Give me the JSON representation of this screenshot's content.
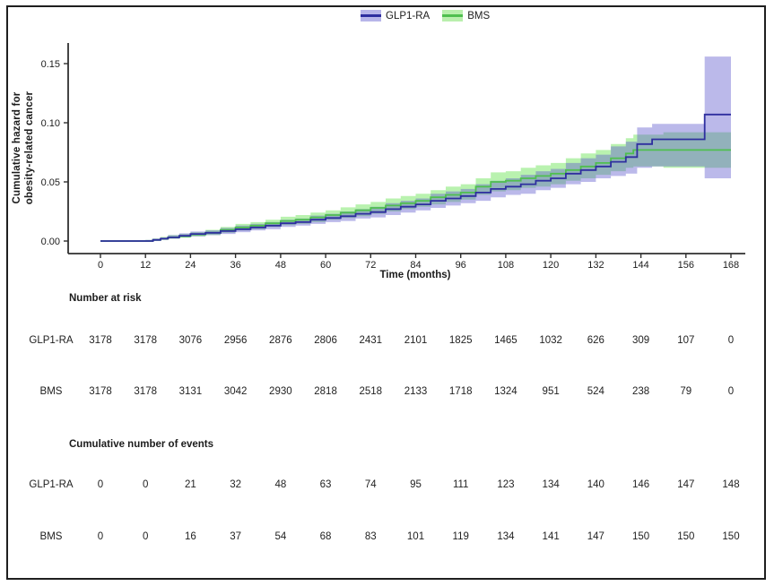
{
  "figure": {
    "y_axis_label_line1": "Cumulative hazard for",
    "y_axis_label_line2": "obesity-related cancer",
    "x_axis_label": "Time (months)"
  },
  "legend": {
    "items": [
      {
        "label": "GLP1-RA",
        "line_color": "#2e2e9f",
        "key_fill": "#b7b5e9"
      },
      {
        "label": "BMS",
        "line_color": "#4fbf4f",
        "key_fill": "#b9efad"
      }
    ]
  },
  "chart_data": {
    "type": "line",
    "subtype": "step-cumulative-hazard-with-confidence-bands",
    "title": "",
    "xlabel": "Time (months)",
    "ylabel": "Cumulative hazard for obesity-related cancer",
    "xlim": [
      0,
      168
    ],
    "ylim": [
      0,
      0.15
    ],
    "x_ticks": [
      0,
      12,
      24,
      36,
      48,
      60,
      72,
      84,
      96,
      108,
      120,
      132,
      144,
      156,
      168
    ],
    "x_tick_labels": [
      "0",
      "12",
      "24",
      "36",
      "48",
      "60",
      "72",
      "84",
      "96",
      "108",
      "120",
      "132",
      "144",
      "156",
      "168"
    ],
    "y_ticks": [
      0,
      0.05,
      0.1,
      0.15
    ],
    "y_tick_labels": [
      "0.00",
      "0.05",
      "0.10",
      "0.15"
    ],
    "grid": false,
    "legend_position": "top-center",
    "series": [
      {
        "name": "GLP1-RA",
        "line_color": "#2e2e9f",
        "band_color": "rgba(92,88,205,0.42)",
        "points": [
          [
            0,
            0,
            0,
            0
          ],
          [
            12,
            0,
            0,
            0.001
          ],
          [
            14,
            0.001,
            0,
            0.002
          ],
          [
            16,
            0.002,
            0.001,
            0.003
          ],
          [
            18,
            0.003,
            0.002,
            0.005
          ],
          [
            21,
            0.0045,
            0.003,
            0.0065
          ],
          [
            24,
            0.006,
            0.004,
            0.008
          ],
          [
            28,
            0.007,
            0.005,
            0.009
          ],
          [
            32,
            0.0085,
            0.006,
            0.011
          ],
          [
            36,
            0.01,
            0.0075,
            0.013
          ],
          [
            40,
            0.0115,
            0.009,
            0.0145
          ],
          [
            44,
            0.013,
            0.01,
            0.016
          ],
          [
            48,
            0.015,
            0.012,
            0.018
          ],
          [
            52,
            0.016,
            0.013,
            0.019
          ],
          [
            56,
            0.018,
            0.0145,
            0.0215
          ],
          [
            60,
            0.0195,
            0.016,
            0.023
          ],
          [
            64,
            0.021,
            0.017,
            0.025
          ],
          [
            68,
            0.023,
            0.019,
            0.027
          ],
          [
            72,
            0.0245,
            0.02,
            0.029
          ],
          [
            76,
            0.027,
            0.022,
            0.032
          ],
          [
            80,
            0.029,
            0.024,
            0.034
          ],
          [
            84,
            0.031,
            0.026,
            0.036
          ],
          [
            88,
            0.034,
            0.028,
            0.04
          ],
          [
            92,
            0.036,
            0.03,
            0.042
          ],
          [
            96,
            0.038,
            0.032,
            0.044
          ],
          [
            100,
            0.041,
            0.034,
            0.048
          ],
          [
            104,
            0.044,
            0.037,
            0.051
          ],
          [
            108,
            0.046,
            0.039,
            0.053
          ],
          [
            112,
            0.048,
            0.04,
            0.056
          ],
          [
            116,
            0.051,
            0.043,
            0.059
          ],
          [
            120,
            0.053,
            0.045,
            0.061
          ],
          [
            124,
            0.057,
            0.048,
            0.066
          ],
          [
            128,
            0.06,
            0.05,
            0.07
          ],
          [
            132,
            0.063,
            0.053,
            0.073
          ],
          [
            136,
            0.067,
            0.055,
            0.08
          ],
          [
            140,
            0.071,
            0.057,
            0.084
          ],
          [
            143,
            0.082,
            0.062,
            0.096
          ],
          [
            147,
            0.086,
            0.063,
            0.099
          ],
          [
            161,
            0.107,
            0.053,
            0.156
          ],
          [
            168,
            0.107,
            0.053,
            0.156
          ]
        ]
      },
      {
        "name": "BMS",
        "line_color": "#4fbf4f",
        "band_color": "rgba(108,228,88,0.48)",
        "points": [
          [
            0,
            0,
            0,
            0
          ],
          [
            12,
            0,
            0,
            0.001
          ],
          [
            14,
            0.001,
            0,
            0.002
          ],
          [
            16,
            0.002,
            0.001,
            0.0035
          ],
          [
            18,
            0.003,
            0.002,
            0.005
          ],
          [
            21,
            0.004,
            0.0028,
            0.006
          ],
          [
            24,
            0.0055,
            0.004,
            0.0075
          ],
          [
            28,
            0.007,
            0.005,
            0.0095
          ],
          [
            32,
            0.0095,
            0.007,
            0.012
          ],
          [
            36,
            0.0115,
            0.009,
            0.0145
          ],
          [
            40,
            0.013,
            0.01,
            0.016
          ],
          [
            44,
            0.015,
            0.012,
            0.018
          ],
          [
            48,
            0.017,
            0.0135,
            0.0205
          ],
          [
            52,
            0.018,
            0.0145,
            0.022
          ],
          [
            56,
            0.02,
            0.016,
            0.024
          ],
          [
            60,
            0.022,
            0.018,
            0.026
          ],
          [
            64,
            0.024,
            0.0195,
            0.0285
          ],
          [
            68,
            0.026,
            0.021,
            0.031
          ],
          [
            72,
            0.028,
            0.023,
            0.033
          ],
          [
            76,
            0.03,
            0.025,
            0.036
          ],
          [
            80,
            0.032,
            0.027,
            0.038
          ],
          [
            84,
            0.034,
            0.029,
            0.04
          ],
          [
            88,
            0.037,
            0.031,
            0.043
          ],
          [
            92,
            0.039,
            0.033,
            0.046
          ],
          [
            96,
            0.041,
            0.035,
            0.048
          ],
          [
            100,
            0.046,
            0.039,
            0.053
          ],
          [
            104,
            0.05,
            0.042,
            0.058
          ],
          [
            108,
            0.051,
            0.043,
            0.059
          ],
          [
            112,
            0.053,
            0.045,
            0.062
          ],
          [
            116,
            0.055,
            0.046,
            0.064
          ],
          [
            120,
            0.057,
            0.048,
            0.066
          ],
          [
            124,
            0.06,
            0.051,
            0.07
          ],
          [
            128,
            0.063,
            0.053,
            0.074
          ],
          [
            132,
            0.066,
            0.056,
            0.077
          ],
          [
            136,
            0.07,
            0.059,
            0.082
          ],
          [
            140,
            0.074,
            0.062,
            0.087
          ],
          [
            142,
            0.077,
            0.063,
            0.09
          ],
          [
            150,
            0.077,
            0.062,
            0.092
          ],
          [
            168,
            0.077,
            0.06,
            0.095
          ]
        ]
      }
    ]
  },
  "risk_table": {
    "title": "Number at risk",
    "times": [
      0,
      12,
      24,
      36,
      48,
      60,
      72,
      84,
      96,
      108,
      120,
      132,
      144,
      156,
      168
    ],
    "rows": [
      {
        "label": "GLP1-RA",
        "values": [
          3178,
          3178,
          3076,
          2956,
          2876,
          2806,
          2431,
          2101,
          1825,
          1465,
          1032,
          626,
          309,
          107,
          0
        ]
      },
      {
        "label": "BMS",
        "values": [
          3178,
          3178,
          3131,
          3042,
          2930,
          2818,
          2518,
          2133,
          1718,
          1324,
          951,
          524,
          238,
          79,
          0
        ]
      }
    ]
  },
  "events_table": {
    "title": "Cumulative number of events",
    "rows": [
      {
        "label": "GLP1-RA",
        "values": [
          0,
          0,
          21,
          32,
          48,
          63,
          74,
          95,
          111,
          123,
          134,
          140,
          146,
          147,
          148
        ]
      },
      {
        "label": "BMS",
        "values": [
          0,
          0,
          16,
          37,
          54,
          68,
          83,
          101,
          119,
          134,
          141,
          147,
          150,
          150,
          150
        ]
      }
    ]
  }
}
